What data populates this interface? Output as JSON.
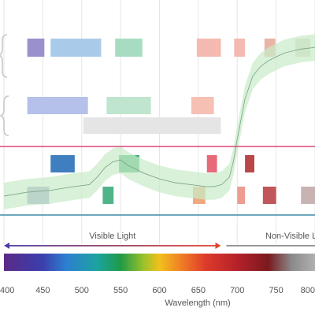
{
  "chart_data": {
    "type": "line",
    "x_unit": "nm",
    "xlabel": "Wavelength (nm)",
    "xlim": [
      400,
      800
    ],
    "x_ticks": [
      "400",
      "450",
      "500",
      "550",
      "600",
      "650",
      "700",
      "750",
      "800"
    ],
    "grid": true,
    "series": [
      {
        "x": [
          400,
          430,
          460,
          490,
          510,
          520,
          530,
          540,
          550,
          560,
          580,
          600,
          620,
          640,
          660,
          670,
          680,
          690,
          695,
          700,
          710,
          720,
          730,
          740,
          750,
          760,
          780,
          800
        ],
        "y": [
          0.12,
          0.14,
          0.15,
          0.17,
          0.18,
          0.22,
          0.27,
          0.3,
          0.31,
          0.28,
          0.24,
          0.21,
          0.19,
          0.18,
          0.17,
          0.17,
          0.18,
          0.22,
          0.3,
          0.42,
          0.63,
          0.75,
          0.8,
          0.83,
          0.85,
          0.87,
          0.89,
          0.9
        ]
      }
    ],
    "band_halfwidth": 0.07,
    "ylim": [
      0,
      1
    ],
    "region_bands": [
      {
        "x0": 430,
        "x1": 452,
        "row": "upper-1",
        "color": "#9a90cc"
      },
      {
        "x0": 460,
        "x1": 525,
        "row": "upper-1",
        "color": "#a9cbe9"
      },
      {
        "x0": 543,
        "x1": 578,
        "row": "upper-1",
        "color": "#a8dcc0"
      },
      {
        "x0": 648,
        "x1": 679,
        "row": "upper-1",
        "color": "#f4b9b0"
      },
      {
        "x0": 696,
        "x1": 710,
        "row": "upper-1",
        "color": "#f4b9b0"
      },
      {
        "x0": 735,
        "x1": 749,
        "row": "upper-1",
        "color": "#e9b5a6"
      },
      {
        "x0": 775,
        "x1": 794,
        "row": "upper-1",
        "color": "#ded2c2"
      },
      {
        "x0": 430,
        "x1": 508,
        "row": "upper-2",
        "color": "#b5c1ea"
      },
      {
        "x0": 532,
        "x1": 589,
        "row": "upper-2",
        "color": "#bfe5ce"
      },
      {
        "x0": 641,
        "x1": 670,
        "row": "upper-2",
        "color": "#f6c0b5"
      },
      {
        "x0": 502,
        "x1": 679,
        "row": "upper-3",
        "color": "#e5e5e5"
      },
      {
        "x0": 460,
        "x1": 491,
        "row": "lower-1",
        "color": "#3f7fc0"
      },
      {
        "x0": 548,
        "x1": 574,
        "row": "lower-1",
        "color": "#3aa870"
      },
      {
        "x0": 661,
        "x1": 674,
        "row": "lower-1",
        "color": "#e66a78"
      },
      {
        "x0": 710,
        "x1": 722,
        "row": "lower-1",
        "color": "#b94649"
      },
      {
        "x0": 430,
        "x1": 458,
        "row": "lower-2",
        "color": "#9999cc"
      },
      {
        "x0": 527,
        "x1": 541,
        "row": "lower-2",
        "color": "#4fb589"
      },
      {
        "x0": 643,
        "x1": 659,
        "row": "lower-2",
        "color": "#eea97c"
      },
      {
        "x0": 700,
        "x1": 710,
        "row": "lower-2",
        "color": "#ee9b90"
      },
      {
        "x0": 733,
        "x1": 750,
        "row": "lower-2",
        "color": "#c0575a"
      },
      {
        "x0": 782,
        "x1": 800,
        "row": "lower-2",
        "color": "#c8b3b3"
      }
    ],
    "reference_lines": [
      {
        "color": "#d9477b"
      },
      {
        "color": "#3a8aa6"
      }
    ],
    "annotations": {
      "visible_label": "Visible Light",
      "visible_range": [
        400,
        679
      ],
      "nonvisible_label": "Non-Visible L",
      "nonvisible_range": [
        686,
        800
      ]
    },
    "spectrum_stops": [
      {
        "nm": 400,
        "color": "#5b2a86"
      },
      {
        "nm": 450,
        "color": "#3a3fae"
      },
      {
        "nm": 480,
        "color": "#2d7fd0"
      },
      {
        "nm": 520,
        "color": "#1ca3a0"
      },
      {
        "nm": 550,
        "color": "#1e9a48"
      },
      {
        "nm": 580,
        "color": "#9cc22a"
      },
      {
        "nm": 600,
        "color": "#f2c01c"
      },
      {
        "nm": 630,
        "color": "#ef7a26"
      },
      {
        "nm": 660,
        "color": "#dd3a2a"
      },
      {
        "nm": 700,
        "color": "#b5212a"
      },
      {
        "nm": 740,
        "color": "#7a1a1e"
      },
      {
        "nm": 770,
        "color": "#8a8a8a"
      },
      {
        "nm": 800,
        "color": "#b0b0b0"
      }
    ],
    "colors": {
      "grid": "#e6e6e6",
      "band_fill": "#c9ebc9",
      "curve": "#7fa98a",
      "visible_arrow_start": "#4b3aa0",
      "visible_arrow_end": "#e2442e",
      "nonvisible_arrow": "#888888",
      "brace": "#c8c8c8",
      "text": "#555555"
    }
  }
}
